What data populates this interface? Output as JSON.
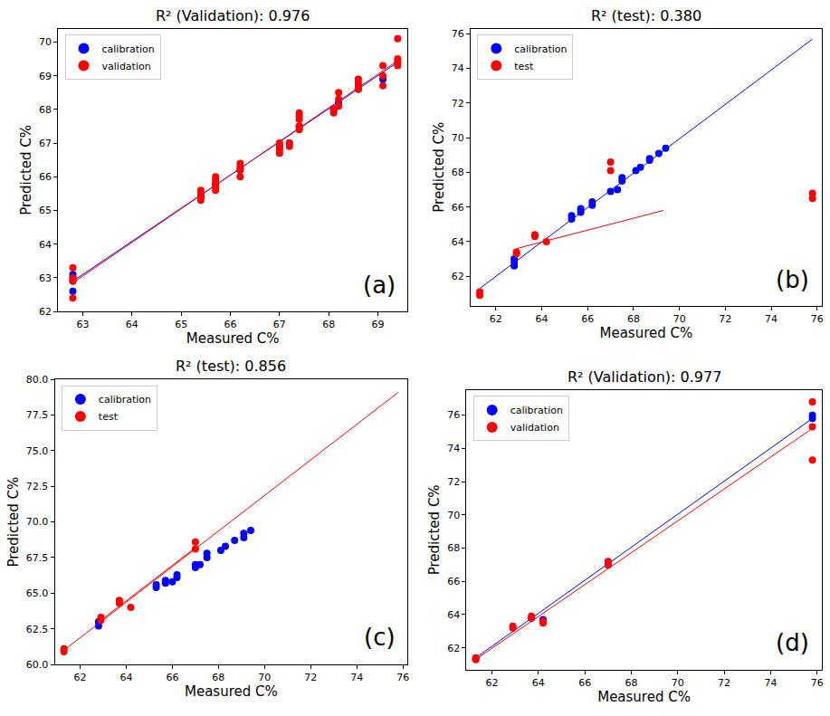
{
  "chart_data": [
    {
      "type": "scatter",
      "title": "R² (Validation): 0.976",
      "x_label": "Measured C%",
      "y_label": "Predicted C%",
      "annotation": "(a)",
      "legend": "upper left",
      "grid": false,
      "xlim": [
        62.5,
        69.6
      ],
      "xticks": [
        63,
        64,
        65,
        66,
        67,
        68,
        69
      ],
      "ylim": [
        62.0,
        70.4
      ],
      "yticks": [
        62,
        63,
        64,
        65,
        66,
        67,
        68,
        69,
        70
      ],
      "series": [
        {
          "name": "calibration",
          "type": "scatter",
          "marker": "circle",
          "color": "#0000ff",
          "x": [
            62.8,
            62.8,
            62.8,
            62.8,
            65.4,
            65.7,
            65.7,
            66.2,
            67.0,
            67.2,
            67.4,
            68.1,
            68.2,
            68.6,
            69.1,
            69.4
          ],
          "values": [
            62.6,
            62.9,
            63.0,
            63.1,
            65.4,
            65.7,
            65.8,
            66.2,
            66.9,
            67.0,
            67.5,
            68.0,
            68.2,
            68.6,
            68.9,
            69.4
          ]
        },
        {
          "name": "validation",
          "type": "scatter",
          "marker": "circle",
          "color": "#ff0000",
          "x": [
            62.8,
            62.8,
            62.8,
            62.8,
            65.4,
            65.4,
            65.4,
            65.4,
            65.7,
            65.7,
            65.7,
            65.7,
            65.7,
            66.2,
            66.2,
            66.2,
            66.2,
            67.0,
            67.0,
            67.0,
            67.0,
            67.2,
            67.2,
            67.4,
            67.4,
            67.4,
            67.4,
            67.4,
            68.1,
            68.1,
            68.2,
            68.2,
            68.2,
            68.6,
            68.6,
            68.6,
            68.6,
            69.1,
            69.1,
            69.1,
            69.4,
            69.4,
            69.4,
            69.4
          ],
          "values": [
            62.4,
            62.9,
            63.0,
            63.3,
            65.3,
            65.4,
            65.5,
            65.6,
            65.6,
            65.7,
            65.8,
            65.9,
            66.0,
            66.0,
            66.2,
            66.3,
            66.4,
            66.7,
            66.8,
            66.9,
            67.0,
            66.9,
            67.0,
            67.4,
            67.5,
            67.7,
            67.8,
            67.9,
            67.9,
            68.0,
            68.1,
            68.3,
            68.5,
            68.6,
            68.7,
            68.8,
            68.9,
            68.7,
            69.0,
            69.3,
            69.3,
            69.4,
            69.5,
            70.1
          ]
        },
        {
          "type": "line",
          "line_style": "solid",
          "color": "#0000ff",
          "x": [
            62.8,
            69.4
          ],
          "values": [
            62.9,
            69.4
          ]
        },
        {
          "type": "line",
          "line_style": "solid",
          "color": "#ff0000",
          "x": [
            62.8,
            69.4
          ],
          "values": [
            62.85,
            69.45
          ]
        }
      ]
    },
    {
      "type": "scatter",
      "title": "R² (test): 0.380",
      "x_label": "Measured C%",
      "y_label": "Predicted C%",
      "annotation": "(b)",
      "legend": "upper left",
      "grid": false,
      "xlim": [
        60.9,
        76.2
      ],
      "xticks": [
        62,
        64,
        66,
        68,
        70,
        72,
        74,
        76
      ],
      "ylim": [
        60.3,
        76.3
      ],
      "yticks": [
        62,
        64,
        66,
        68,
        70,
        72,
        74,
        76
      ],
      "series": [
        {
          "name": "calibration",
          "type": "scatter",
          "marker": "circle",
          "color": "#0000ff",
          "x": [
            62.8,
            62.8,
            62.8,
            65.3,
            65.3,
            65.7,
            65.7,
            66.2,
            66.2,
            67.0,
            67.3,
            67.5,
            67.5,
            68.1,
            68.3,
            68.7,
            68.7,
            69.1,
            69.4
          ],
          "values": [
            62.6,
            62.8,
            63.0,
            65.3,
            65.5,
            65.7,
            65.9,
            66.1,
            66.3,
            66.9,
            67.0,
            67.5,
            67.7,
            68.1,
            68.3,
            68.7,
            68.8,
            69.1,
            69.4
          ]
        },
        {
          "name": "test",
          "type": "scatter",
          "marker": "circle",
          "color": "#ff0000",
          "x": [
            61.3,
            61.3,
            62.9,
            62.9,
            63.7,
            63.7,
            64.2,
            67.0,
            67.0,
            75.8,
            75.8
          ],
          "values": [
            60.9,
            61.1,
            63.3,
            63.4,
            64.3,
            64.4,
            64.0,
            68.1,
            68.6,
            66.5,
            66.8
          ]
        },
        {
          "type": "line",
          "line_style": "solid",
          "color": "#0000ff",
          "x": [
            61.3,
            75.8
          ],
          "values": [
            61.3,
            75.7
          ]
        },
        {
          "type": "line",
          "line_style": "solid",
          "color": "#ff0000",
          "x": [
            62.9,
            69.3
          ],
          "values": [
            63.6,
            65.8
          ]
        }
      ]
    },
    {
      "type": "scatter",
      "title": "R² (test): 0.856",
      "x_label": "Measured C%",
      "y_label": "Predicted C%",
      "annotation": "(c)",
      "legend": "upper left",
      "grid": false,
      "xlim": [
        60.9,
        76.2
      ],
      "xticks": [
        62,
        64,
        66,
        68,
        70,
        72,
        74,
        76
      ],
      "ylim": [
        60.0,
        80.0
      ],
      "yticks": [
        {
          "value": 60,
          "label": "60.0"
        },
        62.5,
        {
          "value": 65,
          "label": "65.0"
        },
        67.5,
        {
          "value": 70,
          "label": "70.0"
        },
        72.5,
        {
          "value": 75,
          "label": "75.0"
        },
        77.5,
        {
          "value": 80,
          "label": "80.0"
        }
      ],
      "series": [
        {
          "name": "calibration",
          "type": "scatter",
          "marker": "circle",
          "color": "#0000ff",
          "x": [
            62.8,
            62.8,
            65.3,
            65.3,
            65.7,
            65.7,
            66.0,
            66.2,
            66.2,
            67.0,
            67.0,
            67.2,
            67.5,
            67.5,
            68.1,
            68.3,
            68.7,
            69.1,
            69.1,
            69.4
          ],
          "values": [
            62.7,
            63.0,
            65.4,
            65.6,
            65.7,
            65.9,
            65.8,
            66.1,
            66.3,
            66.8,
            67.0,
            67.0,
            67.5,
            67.8,
            68.0,
            68.3,
            68.7,
            68.9,
            69.2,
            69.4
          ]
        },
        {
          "name": "test",
          "type": "scatter",
          "marker": "circle",
          "color": "#ff0000",
          "x": [
            61.3,
            61.3,
            62.9,
            62.9,
            63.7,
            63.7,
            64.2,
            67.0,
            67.0
          ],
          "values": [
            60.9,
            61.1,
            63.1,
            63.3,
            64.3,
            64.5,
            64.0,
            68.1,
            68.6
          ]
        },
        {
          "type": "line",
          "line_style": "solid",
          "color": "#ff0000",
          "x": [
            61.3,
            75.8
          ],
          "values": [
            61.0,
            79.1
          ]
        },
        {
          "type": "line",
          "line_style": "solid",
          "color": "#ff0000",
          "x": [
            62.9,
            67.0
          ],
          "values": [
            63.1,
            68.2
          ]
        }
      ]
    },
    {
      "type": "scatter",
      "title": "R² (Validation): 0.977",
      "x_label": "Measured C%",
      "y_label": "Predicted C%",
      "annotation": "(d)",
      "legend": "upper left",
      "grid": false,
      "xlim": [
        60.9,
        76.2
      ],
      "xticks": [
        62,
        64,
        66,
        68,
        70,
        72,
        74,
        76
      ],
      "ylim": [
        60.7,
        77.5
      ],
      "yticks": [
        62,
        64,
        66,
        68,
        70,
        72,
        74,
        76
      ],
      "series": [
        {
          "name": "calibration",
          "type": "scatter",
          "marker": "circle",
          "color": "#0000ff",
          "x": [
            61.3,
            63.7,
            64.2,
            67.0,
            75.8,
            75.8
          ],
          "values": [
            61.3,
            63.8,
            63.7,
            67.0,
            75.8,
            76.0
          ]
        },
        {
          "name": "validation",
          "type": "scatter",
          "marker": "circle",
          "color": "#ff0000",
          "x": [
            61.3,
            61.3,
            62.9,
            62.9,
            63.7,
            63.7,
            64.2,
            64.2,
            67.0,
            67.0,
            75.8,
            75.8,
            75.8
          ],
          "values": [
            61.3,
            61.4,
            63.2,
            63.3,
            63.8,
            63.9,
            63.5,
            63.6,
            67.0,
            67.2,
            73.3,
            75.3,
            76.8
          ]
        },
        {
          "type": "line",
          "line_style": "solid",
          "color": "#0000ff",
          "x": [
            61.3,
            75.8
          ],
          "values": [
            61.4,
            75.8
          ]
        },
        {
          "type": "line",
          "line_style": "solid",
          "color": "#ff0000",
          "x": [
            61.3,
            75.8
          ],
          "values": [
            61.3,
            75.2
          ]
        }
      ]
    }
  ]
}
